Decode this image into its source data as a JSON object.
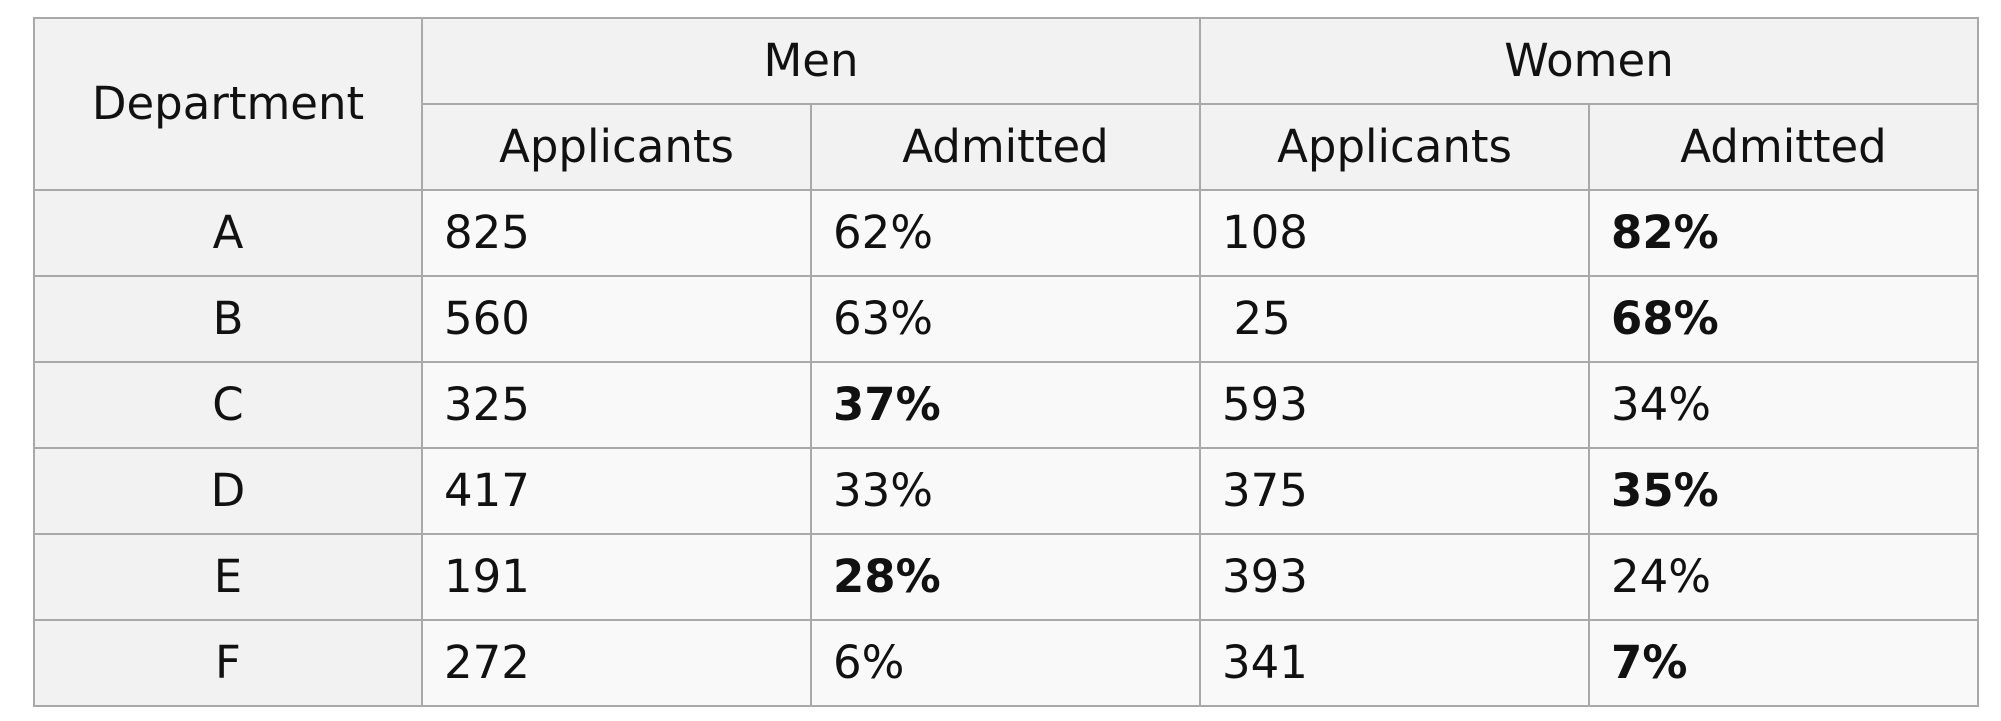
{
  "table": {
    "header": {
      "department": "Department",
      "groups": [
        "Men",
        "Women"
      ],
      "subcolumns": [
        "Applicants",
        "Admitted"
      ]
    },
    "rows": [
      {
        "department": "A",
        "men_applicants": "825",
        "men_admitted": "62%",
        "women_applicants": "108",
        "women_admitted": "82%",
        "bold": "women"
      },
      {
        "department": "B",
        "men_applicants": "560",
        "men_admitted": "63%",
        "women_applicants": "25",
        "women_admitted": "68%",
        "bold": "women"
      },
      {
        "department": "C",
        "men_applicants": "325",
        "men_admitted": "37%",
        "women_applicants": "593",
        "women_admitted": "34%",
        "bold": "men"
      },
      {
        "department": "D",
        "men_applicants": "417",
        "men_admitted": "33%",
        "women_applicants": "375",
        "women_admitted": "35%",
        "bold": "women"
      },
      {
        "department": "E",
        "men_applicants": "191",
        "men_admitted": "28%",
        "women_applicants": "393",
        "women_admitted": "24%",
        "bold": "men"
      },
      {
        "department": "F",
        "men_applicants": "272",
        "men_admitted": "6%",
        "women_applicants": "341",
        "women_admitted": "7%",
        "bold": "women"
      }
    ]
  }
}
